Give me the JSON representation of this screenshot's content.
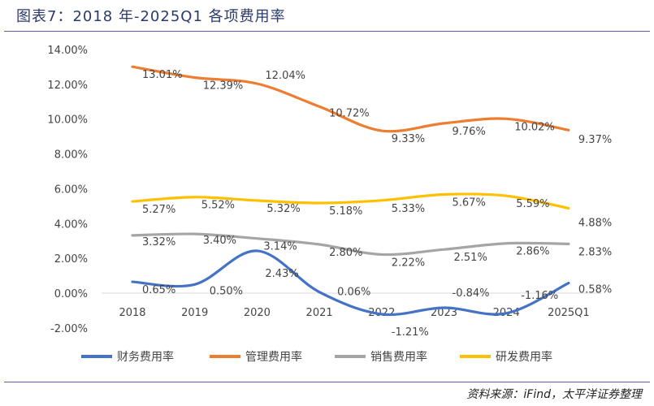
{
  "title": "图表7：2018 年-2025Q1 各项费用率",
  "source": "资料来源：iFind，太平洋证券整理",
  "chart_data": {
    "type": "line",
    "categories": [
      "2018",
      "2019",
      "2020",
      "2021",
      "2022",
      "2023",
      "2024",
      "2025Q1"
    ],
    "ylim": [
      -2,
      14
    ],
    "yticks": [
      -2,
      0,
      2,
      4,
      6,
      8,
      10,
      12,
      14
    ],
    "ytick_labels": [
      "-2.00%",
      "0.00%",
      "2.00%",
      "4.00%",
      "6.00%",
      "8.00%",
      "10.00%",
      "12.00%",
      "14.00%"
    ],
    "grid": "zero-line only",
    "legend": "bottom",
    "smooth": true,
    "series": [
      {
        "name": "财务费用率",
        "color": "#4472c4",
        "values": [
          0.65,
          0.5,
          2.43,
          0.06,
          -1.21,
          -0.84,
          -1.16,
          0.58
        ],
        "labels": [
          "0.65%",
          "0.50%",
          "2.43%",
          "0.06%",
          "-1.21%",
          "-0.84%",
          "-1.16%",
          "0.58%"
        ]
      },
      {
        "name": "管理费用率",
        "color": "#ed7d31",
        "values": [
          13.01,
          12.39,
          12.04,
          10.72,
          9.33,
          9.76,
          10.02,
          9.37
        ],
        "labels": [
          "13.01%",
          "12.39%",
          "12.04%",
          "10.72%",
          "9.33%",
          "9.76%",
          "10.02%",
          "9.37%"
        ]
      },
      {
        "name": "销售费用率",
        "color": "#a5a5a5",
        "values": [
          3.32,
          3.4,
          3.14,
          2.8,
          2.22,
          2.51,
          2.86,
          2.83
        ],
        "labels": [
          "3.32%",
          "3.40%",
          "3.14%",
          "2.80%",
          "2.22%",
          "2.51%",
          "2.86%",
          "2.83%"
        ]
      },
      {
        "name": "研发费用率",
        "color": "#ffc000",
        "values": [
          5.27,
          5.52,
          5.32,
          5.18,
          5.33,
          5.67,
          5.59,
          4.88
        ],
        "labels": [
          "5.27%",
          "5.52%",
          "5.32%",
          "5.18%",
          "5.33%",
          "5.67%",
          "5.59%",
          "4.88%"
        ]
      }
    ]
  }
}
